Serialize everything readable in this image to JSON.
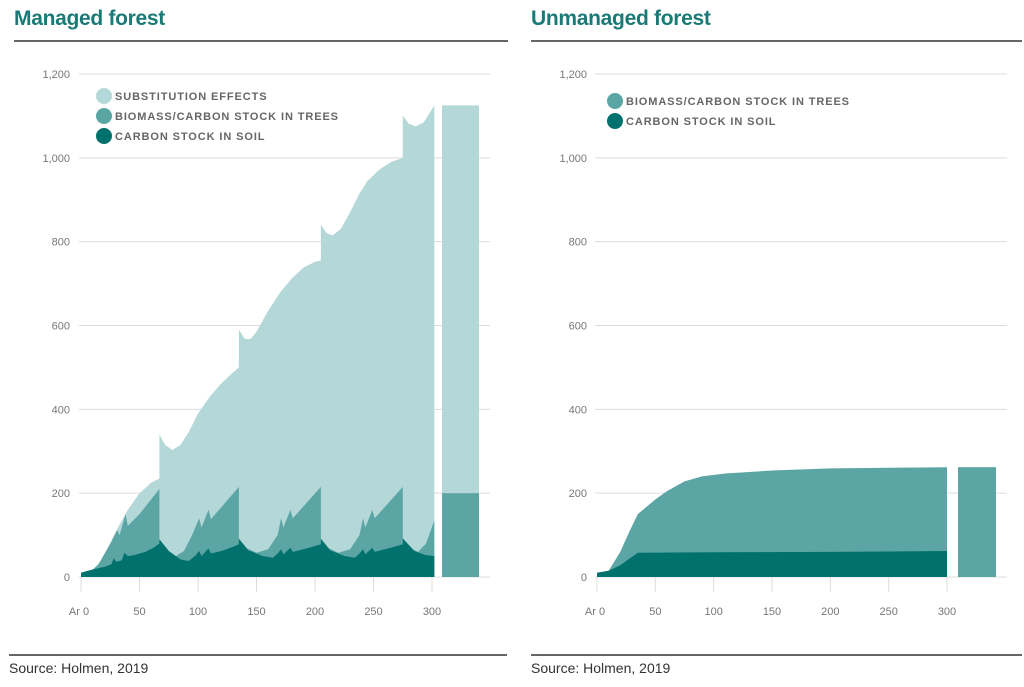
{
  "colors": {
    "substitution": "#b4d7d8",
    "trees": "#5ba5a4",
    "soil": "#00716c",
    "title": "#1b7a76"
  },
  "chart_data": [
    {
      "type": "area",
      "title": "Managed forest",
      "source": "Source: Holmen, 2019",
      "xlabel": "",
      "ylabel": "",
      "xlim": [
        0,
        300
      ],
      "ylim": [
        0,
        1200
      ],
      "y_ticks": [
        "0",
        "200",
        "400",
        "600",
        "800",
        "1,000",
        "1,200"
      ],
      "y_tick_values": [
        0,
        200,
        400,
        600,
        800,
        1000,
        1200
      ],
      "x_ticks": [
        "Ar 0",
        "50",
        "100",
        "150",
        "200",
        "250",
        "300"
      ],
      "x_tick_values": [
        0,
        50,
        100,
        150,
        200,
        250,
        300
      ],
      "grid": true,
      "legend_position": "top-left",
      "stacked": true,
      "series": [
        {
          "name": "SUBSTITUTION EFFECTS",
          "color_key": "substitution",
          "points": [
            [
              0,
              10
            ],
            [
              10,
              15
            ],
            [
              20,
              50
            ],
            [
              30,
              110
            ],
            [
              40,
              160
            ],
            [
              50,
              200
            ],
            [
              60,
              225
            ],
            [
              67,
              235
            ],
            [
              67,
              340
            ],
            [
              72,
              315
            ],
            [
              78,
              303
            ],
            [
              85,
              315
            ],
            [
              92,
              345
            ],
            [
              100,
              390
            ],
            [
              110,
              430
            ],
            [
              120,
              462
            ],
            [
              130,
              488
            ],
            [
              135,
              500
            ],
            [
              135,
              590
            ],
            [
              140,
              568
            ],
            [
              145,
              568
            ],
            [
              150,
              585
            ],
            [
              160,
              635
            ],
            [
              170,
              678
            ],
            [
              180,
              712
            ],
            [
              190,
              738
            ],
            [
              200,
              752
            ],
            [
              205,
              755
            ],
            [
              205,
              840
            ],
            [
              210,
              820
            ],
            [
              215,
              815
            ],
            [
              222,
              830
            ],
            [
              230,
              870
            ],
            [
              238,
              915
            ],
            [
              245,
              945
            ],
            [
              255,
              972
            ],
            [
              265,
              990
            ],
            [
              275,
              1000
            ],
            [
              275,
              1100
            ],
            [
              280,
              1082
            ],
            [
              286,
              1075
            ],
            [
              293,
              1085
            ],
            [
              302,
              1125
            ]
          ]
        },
        {
          "name": "BIOMASS/CARBON STOCK IN TREES",
          "color_key": "trees",
          "points": [
            [
              0,
              10
            ],
            [
              10,
              18
            ],
            [
              15,
              30
            ],
            [
              25,
              80
            ],
            [
              31,
              112
            ],
            [
              33,
              100
            ],
            [
              38,
              150
            ],
            [
              40,
              122
            ],
            [
              50,
              150
            ],
            [
              67,
              210
            ],
            [
              67,
              88
            ],
            [
              74,
              60
            ],
            [
              80,
              48
            ],
            [
              88,
              62
            ],
            [
              95,
              100
            ],
            [
              101,
              140
            ],
            [
              103,
              118
            ],
            [
              109,
              160
            ],
            [
              111,
              138
            ],
            [
              135,
              215
            ],
            [
              135,
              92
            ],
            [
              142,
              68
            ],
            [
              150,
              58
            ],
            [
              160,
              66
            ],
            [
              168,
              100
            ],
            [
              171,
              140
            ],
            [
              173,
              118
            ],
            [
              179,
              160
            ],
            [
              181,
              140
            ],
            [
              205,
              215
            ],
            [
              205,
              92
            ],
            [
              212,
              68
            ],
            [
              220,
              58
            ],
            [
              230,
              66
            ],
            [
              238,
              100
            ],
            [
              241,
              140
            ],
            [
              243,
              118
            ],
            [
              249,
              160
            ],
            [
              251,
              140
            ],
            [
              275,
              215
            ],
            [
              275,
              92
            ],
            [
              282,
              68
            ],
            [
              288,
              60
            ],
            [
              295,
              80
            ],
            [
              302,
              135
            ]
          ]
        },
        {
          "name": "CARBON STOCK IN SOIL",
          "color_key": "soil",
          "points": [
            [
              0,
              10
            ],
            [
              10,
              18
            ],
            [
              20,
              24
            ],
            [
              26,
              30
            ],
            [
              28,
              45
            ],
            [
              30,
              36
            ],
            [
              35,
              40
            ],
            [
              37,
              58
            ],
            [
              40,
              50
            ],
            [
              45,
              52
            ],
            [
              55,
              60
            ],
            [
              62,
              70
            ],
            [
              67,
              80
            ],
            [
              67,
              90
            ],
            [
              75,
              62
            ],
            [
              85,
              42
            ],
            [
              92,
              38
            ],
            [
              98,
              52
            ],
            [
              101,
              62
            ],
            [
              103,
              50
            ],
            [
              109,
              68
            ],
            [
              111,
              56
            ],
            [
              120,
              62
            ],
            [
              130,
              72
            ],
            [
              135,
              78
            ],
            [
              135,
              90
            ],
            [
              143,
              64
            ],
            [
              155,
              50
            ],
            [
              164,
              46
            ],
            [
              168,
              56
            ],
            [
              171,
              66
            ],
            [
              173,
              54
            ],
            [
              179,
              70
            ],
            [
              181,
              60
            ],
            [
              195,
              70
            ],
            [
              205,
              78
            ],
            [
              205,
              90
            ],
            [
              213,
              64
            ],
            [
              225,
              50
            ],
            [
              234,
              46
            ],
            [
              238,
              56
            ],
            [
              241,
              66
            ],
            [
              243,
              54
            ],
            [
              249,
              70
            ],
            [
              251,
              60
            ],
            [
              265,
              70
            ],
            [
              275,
              78
            ],
            [
              275,
              92
            ],
            [
              285,
              62
            ],
            [
              295,
              52
            ],
            [
              302,
              50
            ]
          ]
        }
      ],
      "total_bar": {
        "trees": 200,
        "substitution_top": 1125
      }
    },
    {
      "type": "area",
      "title": "Unmanaged forest",
      "source": "Source: Holmen, 2019",
      "xlabel": "",
      "ylabel": "",
      "xlim": [
        0,
        300
      ],
      "ylim": [
        0,
        1200
      ],
      "y_ticks": [
        "0",
        "200",
        "400",
        "600",
        "800",
        "1,000",
        "1,200"
      ],
      "y_tick_values": [
        0,
        200,
        400,
        600,
        800,
        1000,
        1200
      ],
      "x_ticks": [
        "Ar 0",
        "50",
        "100",
        "150",
        "200",
        "250",
        "300"
      ],
      "x_tick_values": [
        0,
        50,
        100,
        150,
        200,
        250,
        300
      ],
      "grid": true,
      "legend_position": "top-left",
      "stacked": true,
      "series": [
        {
          "name": "BIOMASS/CARBON STOCK IN TREES",
          "color_key": "trees",
          "points": [
            [
              0,
              10
            ],
            [
              10,
              15
            ],
            [
              20,
              60
            ],
            [
              28,
              110
            ],
            [
              35,
              150
            ],
            [
              50,
              185
            ],
            [
              60,
              205
            ],
            [
              75,
              228
            ],
            [
              90,
              240
            ],
            [
              110,
              247
            ],
            [
              150,
              254
            ],
            [
              200,
              259
            ],
            [
              300,
              262
            ]
          ]
        },
        {
          "name": "CARBON STOCK IN SOIL",
          "color_key": "soil",
          "points": [
            [
              0,
              10
            ],
            [
              10,
              15
            ],
            [
              20,
              28
            ],
            [
              35,
              58
            ],
            [
              100,
              59
            ],
            [
              200,
              60
            ],
            [
              300,
              62
            ]
          ]
        }
      ],
      "total_bar": {
        "trees": 262
      }
    }
  ]
}
